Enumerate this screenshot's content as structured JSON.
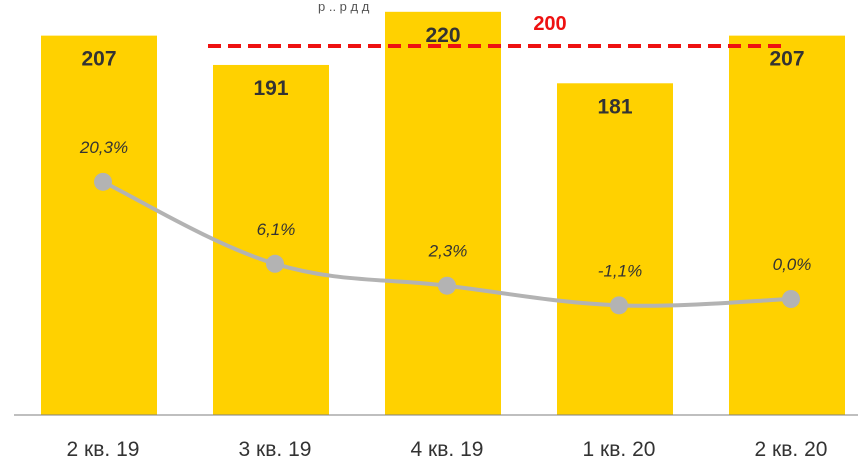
{
  "chart_data": {
    "type": "bar",
    "categories": [
      "2 кв. 19",
      "3 кв. 19",
      "4 кв. 19",
      "1 кв. 20",
      "2 кв. 20"
    ],
    "values": [
      207,
      191,
      220,
      181,
      207
    ],
    "line_series": {
      "values": [
        20.3,
        6.1,
        2.3,
        -1.1,
        0.0
      ],
      "labels": [
        "20,3%",
        "6,1%",
        "2,3%",
        "-1,1%",
        "0,0%"
      ]
    },
    "reference_line": {
      "value": 200,
      "label": "200",
      "color": "#EE1111",
      "from_category": 1,
      "to_category": 4
    },
    "top_note": "р     ..      р  д                    д",
    "colors": {
      "bar": "#FFD100",
      "line": "#B3B3B3",
      "marker": "#B3B3B3"
    },
    "ylim": [
      0,
      230
    ],
    "grid": false
  }
}
